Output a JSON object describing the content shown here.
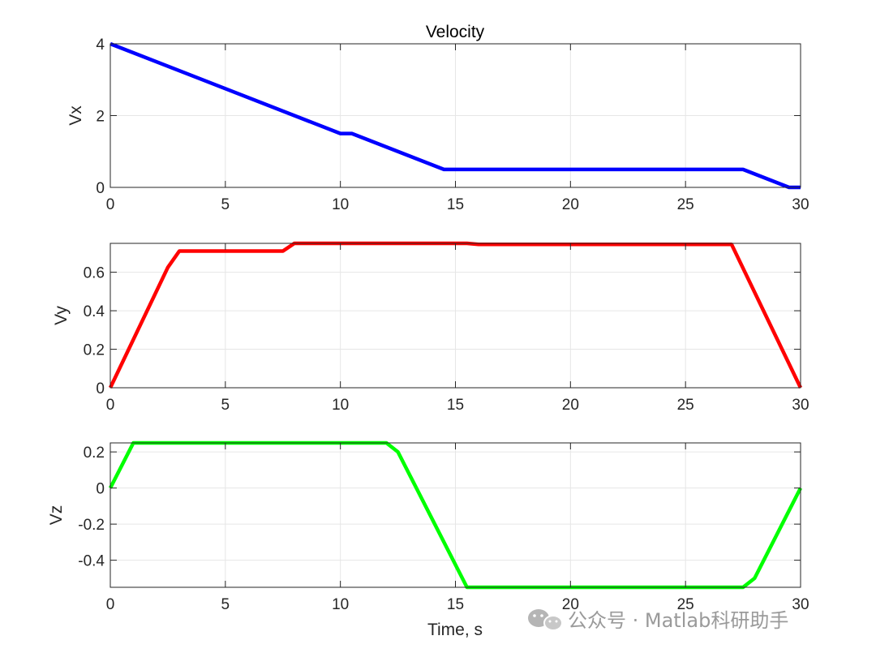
{
  "figure": {
    "title": "Velocity",
    "xlabel": "Time, s",
    "watermark": "公众号 · Matlab科研助手"
  },
  "chart_data": [
    {
      "type": "line",
      "title": "Velocity",
      "xlabel": "",
      "ylabel": "Vx",
      "xlim": [
        0,
        30
      ],
      "ylim": [
        0,
        4
      ],
      "xticks": [
        "0",
        "5",
        "10",
        "15",
        "20",
        "25",
        "30"
      ],
      "yticks": [
        "0",
        "2",
        "4"
      ],
      "ytick_values": [
        0,
        2,
        4
      ],
      "grid": true,
      "color": "#0000ff",
      "series": [
        {
          "x": [
            0,
            10,
            10.5,
            14.5,
            27.5,
            29.5,
            30
          ],
          "y": [
            4,
            1.5,
            1.5,
            0.5,
            0.5,
            0,
            0
          ]
        }
      ]
    },
    {
      "type": "line",
      "title": "",
      "xlabel": "",
      "ylabel": "Vy",
      "xlim": [
        0,
        30
      ],
      "ylim": [
        0,
        0.75
      ],
      "xticks": [
        "0",
        "5",
        "10",
        "15",
        "20",
        "25",
        "30"
      ],
      "yticks": [
        "0",
        "0.2",
        "0.4",
        "0.6"
      ],
      "ytick_values": [
        0,
        0.2,
        0.4,
        0.6
      ],
      "grid": true,
      "color": "#ff0000",
      "series": [
        {
          "x": [
            0,
            2.5,
            3,
            7.5,
            8,
            15.5,
            16,
            27,
            30
          ],
          "y": [
            0,
            0.625,
            0.71,
            0.71,
            0.75,
            0.75,
            0.745,
            0.745,
            0
          ]
        }
      ]
    },
    {
      "type": "line",
      "title": "",
      "xlabel": "Time, s",
      "ylabel": "Vz",
      "xlim": [
        0,
        30
      ],
      "ylim": [
        -0.55,
        0.25
      ],
      "xticks": [
        "0",
        "5",
        "10",
        "15",
        "20",
        "25",
        "30"
      ],
      "yticks": [
        "-0.4",
        "-0.2",
        "0",
        "0.2"
      ],
      "ytick_values": [
        -0.4,
        -0.2,
        0,
        0.2
      ],
      "grid": true,
      "color": "#00ff00",
      "series": [
        {
          "x": [
            0,
            1,
            12,
            12.5,
            15.5,
            27.5,
            28,
            30
          ],
          "y": [
            0,
            0.25,
            0.25,
            0.2,
            -0.55,
            -0.55,
            -0.5,
            0
          ]
        }
      ]
    }
  ]
}
